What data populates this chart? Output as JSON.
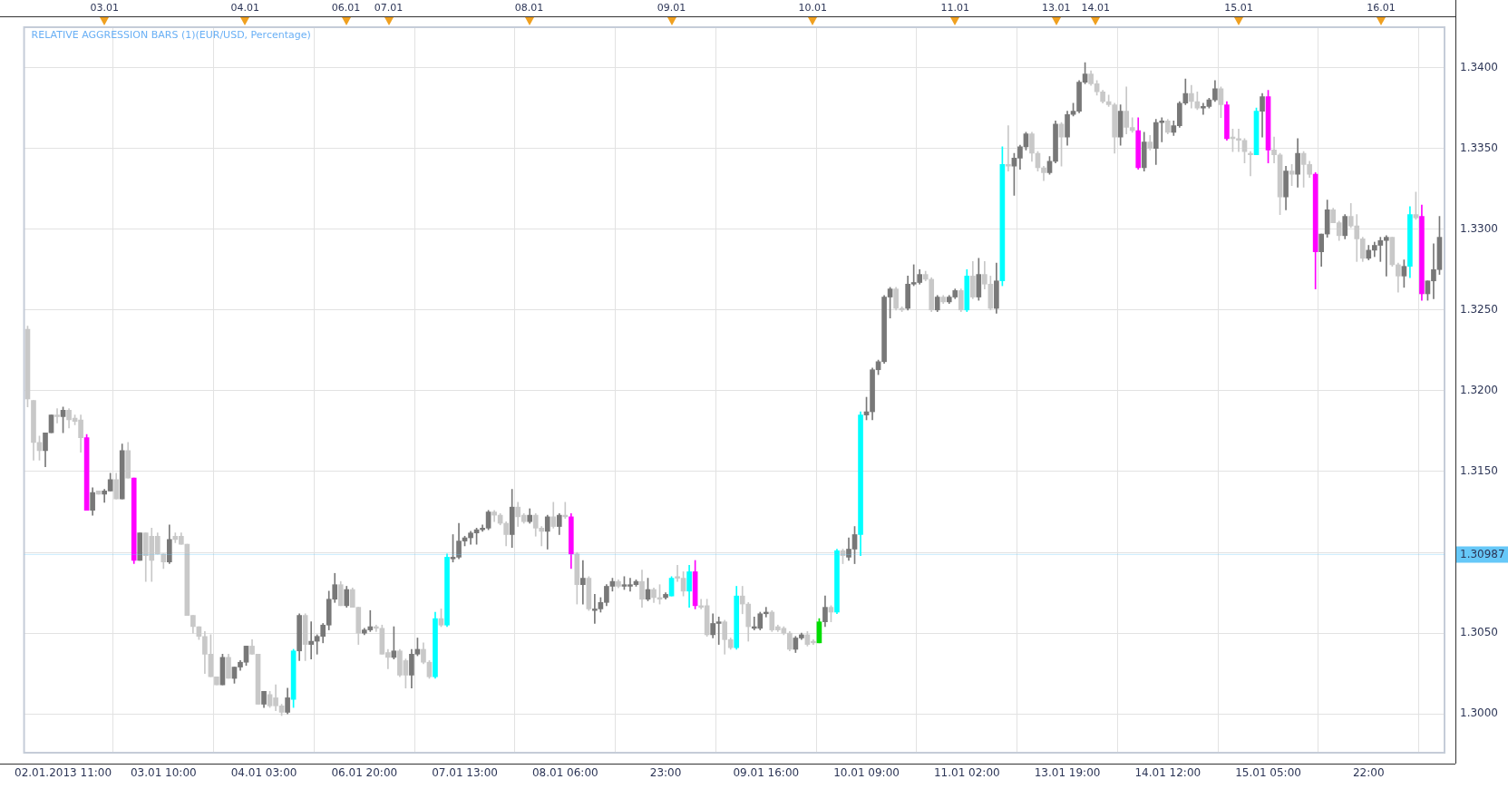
{
  "chart_data": {
    "type": "candlestick",
    "title": "RELATIVE AGGRESSION BARS (1)(EUR/USD, Percentage)",
    "categories": [
      null,
      null,
      null,
      null,
      null,
      null,
      "02.01.2013 11:00",
      null,
      null,
      null,
      null,
      null,
      null,
      null,
      null,
      null,
      null,
      null,
      null,
      null,
      null,
      null,
      null,
      "03.01 10:00",
      null,
      null,
      null,
      null,
      null,
      null,
      null,
      null,
      null,
      null,
      null,
      null,
      null,
      null,
      null,
      null,
      "04.01 03:00",
      null,
      null,
      null,
      null,
      null,
      null,
      null,
      null,
      null,
      null,
      null,
      null,
      null,
      null,
      null,
      null,
      "06.01 20:00",
      null,
      null,
      null,
      null,
      null,
      null,
      null,
      null,
      null,
      null,
      null,
      null,
      null,
      null,
      null,
      null,
      "07.01 13:00",
      null,
      null,
      null,
      null,
      null,
      null,
      null,
      null,
      null,
      null,
      null,
      null,
      null,
      null,
      null,
      null,
      "08.01 06:00",
      null,
      null,
      null,
      null,
      null,
      null,
      null,
      null,
      null,
      null,
      null,
      null,
      null,
      null,
      null,
      null,
      "23:00",
      null,
      null,
      null,
      null,
      null,
      null,
      null,
      null,
      null,
      null,
      null,
      null,
      null,
      null,
      null,
      null,
      "09.01 16:00",
      null,
      null,
      null,
      null,
      null,
      null,
      null,
      null,
      null,
      null,
      null,
      null,
      null,
      null,
      null,
      null,
      "10.01 09:00",
      null,
      null,
      null,
      null,
      null,
      null,
      null,
      null,
      null,
      null,
      null,
      null,
      null,
      null,
      null,
      null,
      "11.01 02:00",
      null,
      null,
      null,
      null,
      null,
      null,
      null,
      null,
      null,
      null,
      null,
      null,
      null,
      null,
      null,
      null,
      "13.01 19:00",
      null,
      null,
      null,
      null,
      null,
      null,
      null,
      null,
      null,
      null,
      null,
      null,
      null,
      null,
      null,
      null,
      "14.01 12:00",
      null,
      null,
      null,
      null,
      null,
      null,
      null,
      null,
      null,
      null,
      null,
      null,
      null,
      null,
      null,
      null,
      "15.01 05:00",
      null,
      null,
      null,
      null,
      null,
      null,
      null,
      null,
      null,
      null,
      null,
      null,
      null,
      null,
      null,
      null,
      "22:00",
      null,
      null,
      null,
      null,
      null,
      null,
      null,
      null,
      null,
      null,
      null,
      null
    ],
    "ohlc": [
      [
        1.3238,
        1.324,
        1.319,
        1.3195
      ],
      [
        1.3194,
        1.3194,
        1.3157,
        1.3168
      ],
      [
        1.3168,
        1.3172,
        1.3157,
        1.3163
      ],
      [
        1.3163,
        1.3174,
        1.3153,
        1.3174
      ],
      [
        1.3174,
        1.3185,
        1.3174,
        1.3185
      ],
      [
        1.3185,
        1.3189,
        1.318,
        1.3184
      ],
      [
        1.3184,
        1.319,
        1.3174,
        1.3188
      ],
      [
        1.3188,
        1.3189,
        1.3177,
        1.3182
      ],
      [
        1.3183,
        1.3185,
        1.3179,
        1.3181
      ],
      [
        1.3182,
        1.3185,
        1.3162,
        1.3171
      ],
      [
        1.3171,
        1.3173,
        1.3126,
        1.3126
      ],
      [
        1.3126,
        1.314,
        1.3123,
        1.3137
      ],
      [
        1.3138,
        1.3138,
        1.3136,
        1.3136
      ],
      [
        1.3136,
        1.3139,
        1.3131,
        1.3138
      ],
      [
        1.3138,
        1.3149,
        1.3138,
        1.3145
      ],
      [
        1.3145,
        1.3149,
        1.3133,
        1.3133
      ],
      [
        1.3133,
        1.3167,
        1.3133,
        1.3163
      ],
      [
        1.3163,
        1.3168,
        1.3146,
        1.3146
      ],
      [
        1.3146,
        1.3146,
        1.3093,
        1.3095
      ],
      [
        1.3095,
        1.3112,
        1.3095,
        1.3112
      ],
      [
        1.3112,
        1.3112,
        1.3082,
        1.3098
      ],
      [
        1.311,
        1.3115,
        1.3082,
        1.3095
      ],
      [
        1.311,
        1.3112,
        1.3099,
        1.3099
      ],
      [
        1.3099,
        1.3099,
        1.309,
        1.3094
      ],
      [
        1.3094,
        1.3117,
        1.3093,
        1.3108
      ],
      [
        1.311,
        1.3112,
        1.3106,
        1.3108
      ],
      [
        1.311,
        1.3112,
        1.3105,
        1.3105
      ],
      [
        1.3105,
        1.3105,
        1.3061,
        1.3061
      ],
      [
        1.3061,
        1.3061,
        1.305,
        1.3054
      ],
      [
        1.3054,
        1.3054,
        1.3046,
        1.3048
      ],
      [
        1.3048,
        1.3051,
        1.3025,
        1.3037
      ],
      [
        1.3037,
        1.3049,
        1.3023,
        1.3023
      ],
      [
        1.3023,
        1.3023,
        1.3018,
        1.3018
      ],
      [
        1.3018,
        1.3037,
        1.3018,
        1.3035
      ],
      [
        1.3035,
        1.3037,
        1.3022,
        1.3022
      ],
      [
        1.3022,
        1.3029,
        1.3019,
        1.3029
      ],
      [
        1.3029,
        1.3033,
        1.3027,
        1.3032
      ],
      [
        1.3032,
        1.3042,
        1.303,
        1.3042
      ],
      [
        1.3042,
        1.3046,
        1.3037,
        1.3037
      ],
      [
        1.3037,
        1.3037,
        1.3006,
        1.3006
      ],
      [
        1.3006,
        1.3014,
        1.3004,
        1.3014
      ],
      [
        1.3012,
        1.3014,
        1.3004,
        1.3005
      ],
      [
        1.301,
        1.3018,
        1.3002,
        1.3005
      ],
      [
        1.3005,
        1.3006,
        1.2999,
        1.3001
      ],
      [
        1.3001,
        1.3016,
        1.3,
        1.301
      ],
      [
        1.3009,
        1.304,
        1.3004,
        1.3039
      ],
      [
        1.3039,
        1.3062,
        1.3033,
        1.3061
      ],
      [
        1.3061,
        1.3062,
        1.3033,
        1.3043
      ],
      [
        1.3043,
        1.3057,
        1.3034,
        1.3045
      ],
      [
        1.3045,
        1.3049,
        1.3037,
        1.3048
      ],
      [
        1.3048,
        1.3056,
        1.3044,
        1.3055
      ],
      [
        1.3055,
        1.3076,
        1.3052,
        1.3071
      ],
      [
        1.3071,
        1.3087,
        1.3069,
        1.308
      ],
      [
        1.308,
        1.3082,
        1.3067,
        1.3067
      ],
      [
        1.3067,
        1.3079,
        1.3066,
        1.3077
      ],
      [
        1.3077,
        1.3078,
        1.3066,
        1.3066
      ],
      [
        1.3066,
        1.3066,
        1.3043,
        1.305
      ],
      [
        1.305,
        1.3053,
        1.3049,
        1.3052
      ],
      [
        1.3052,
        1.3064,
        1.3051,
        1.3054
      ],
      [
        1.3054,
        1.3055,
        1.3051,
        1.3053
      ],
      [
        1.3053,
        1.3055,
        1.3037,
        1.3037
      ],
      [
        1.3038,
        1.304,
        1.3028,
        1.3035
      ],
      [
        1.3035,
        1.3054,
        1.3034,
        1.3039
      ],
      [
        1.3039,
        1.304,
        1.3023,
        1.3024
      ],
      [
        1.3033,
        1.3034,
        1.3016,
        1.3024
      ],
      [
        1.3024,
        1.304,
        1.3016,
        1.3037
      ],
      [
        1.3037,
        1.3047,
        1.3036,
        1.304
      ],
      [
        1.304,
        1.3044,
        1.3031,
        1.3032
      ],
      [
        1.3032,
        1.3033,
        1.3022,
        1.3023
      ],
      [
        1.3023,
        1.3063,
        1.3022,
        1.3059
      ],
      [
        1.3059,
        1.3065,
        1.3054,
        1.3055
      ],
      [
        1.3055,
        1.3099,
        1.3054,
        1.3097
      ],
      [
        1.3096,
        1.3111,
        1.3094,
        1.3097
      ],
      [
        1.3097,
        1.3118,
        1.3096,
        1.3107
      ],
      [
        1.3107,
        1.311,
        1.3104,
        1.3109
      ],
      [
        1.3109,
        1.3113,
        1.3105,
        1.3112
      ],
      [
        1.3112,
        1.3115,
        1.3105,
        1.3114
      ],
      [
        1.3114,
        1.3117,
        1.3113,
        1.3115
      ],
      [
        1.3115,
        1.3126,
        1.3114,
        1.3125
      ],
      [
        1.3125,
        1.3126,
        1.3119,
        1.3123
      ],
      [
        1.3123,
        1.3124,
        1.3117,
        1.3118
      ],
      [
        1.3118,
        1.3119,
        1.3104,
        1.3111
      ],
      [
        1.3111,
        1.3139,
        1.3103,
        1.3128
      ],
      [
        1.3128,
        1.3131,
        1.3116,
        1.3122
      ],
      [
        1.3123,
        1.3124,
        1.3118,
        1.3119
      ],
      [
        1.3119,
        1.3127,
        1.3118,
        1.3123
      ],
      [
        1.3123,
        1.3124,
        1.311,
        1.3115
      ],
      [
        1.3115,
        1.3116,
        1.3104,
        1.3113
      ],
      [
        1.3113,
        1.3123,
        1.3102,
        1.3122
      ],
      [
        1.3122,
        1.3131,
        1.3115,
        1.3116
      ],
      [
        1.3116,
        1.3124,
        1.3111,
        1.3123
      ],
      [
        1.3123,
        1.3131,
        1.3121,
        1.3122
      ],
      [
        1.3122,
        1.3124,
        1.309,
        1.3099
      ],
      [
        1.3099,
        1.31,
        1.3068,
        1.308
      ],
      [
        1.308,
        1.3095,
        1.3068,
        1.3084
      ],
      [
        1.3084,
        1.3085,
        1.3064,
        1.3065
      ],
      [
        1.3064,
        1.3074,
        1.3056,
        1.3065
      ],
      [
        1.3065,
        1.3072,
        1.3063,
        1.3069
      ],
      [
        1.3069,
        1.308,
        1.3067,
        1.3079
      ],
      [
        1.3079,
        1.3084,
        1.3076,
        1.3082
      ],
      [
        1.3082,
        1.3083,
        1.3078,
        1.3079
      ],
      [
        1.3079,
        1.3085,
        1.3077,
        1.308
      ],
      [
        1.3079,
        1.3084,
        1.3076,
        1.308
      ],
      [
        1.308,
        1.3083,
        1.3079,
        1.3082
      ],
      [
        1.3082,
        1.3089,
        1.3066,
        1.3071
      ],
      [
        1.3071,
        1.3084,
        1.307,
        1.3077
      ],
      [
        1.3077,
        1.3078,
        1.3069,
        1.3072
      ],
      [
        1.3072,
        1.308,
        1.3068,
        1.3071
      ],
      [
        1.3072,
        1.3075,
        1.3071,
        1.3074
      ],
      [
        1.3073,
        1.3085,
        1.3073,
        1.3084
      ],
      [
        1.3085,
        1.3092,
        1.3082,
        1.3084
      ],
      [
        1.3084,
        1.3088,
        1.3073,
        1.3076
      ],
      [
        1.3076,
        1.3092,
        1.3066,
        1.3088
      ],
      [
        1.3088,
        1.3095,
        1.3065,
        1.3067
      ],
      [
        1.3067,
        1.3071,
        1.3065,
        1.3066
      ],
      [
        1.3067,
        1.3071,
        1.3048,
        1.3049
      ],
      [
        1.3049,
        1.3062,
        1.3047,
        1.3056
      ],
      [
        1.3056,
        1.306,
        1.3043,
        1.3057
      ],
      [
        1.3057,
        1.3058,
        1.3037,
        1.3046
      ],
      [
        1.3046,
        1.3047,
        1.304,
        1.3041
      ],
      [
        1.3041,
        1.3079,
        1.304,
        1.3073
      ],
      [
        1.3073,
        1.3079,
        1.3062,
        1.3068
      ],
      [
        1.3068,
        1.3069,
        1.3045,
        1.3054
      ],
      [
        1.3053,
        1.306,
        1.3052,
        1.3054
      ],
      [
        1.3053,
        1.3063,
        1.3052,
        1.3062
      ],
      [
        1.3062,
        1.3066,
        1.306,
        1.3063
      ],
      [
        1.3063,
        1.3064,
        1.3051,
        1.3052
      ],
      [
        1.3054,
        1.3055,
        1.3051,
        1.3052
      ],
      [
        1.3053,
        1.3054,
        1.3049,
        1.305
      ],
      [
        1.305,
        1.3051,
        1.3039,
        1.304
      ],
      [
        1.304,
        1.3048,
        1.3038,
        1.3047
      ],
      [
        1.3047,
        1.305,
        1.3046,
        1.3049
      ],
      [
        1.3049,
        1.3051,
        1.3042,
        1.3043
      ],
      [
        1.3045,
        1.3046,
        1.3043,
        1.3044
      ],
      [
        1.3044,
        1.3059,
        1.3044,
        1.3057
      ],
      [
        1.3057,
        1.3073,
        1.3054,
        1.3066
      ],
      [
        1.3066,
        1.3067,
        1.3057,
        1.3063
      ],
      [
        1.3063,
        1.3102,
        1.3062,
        1.3101
      ],
      [
        1.3101,
        1.3102,
        1.3093,
        1.3098
      ],
      [
        1.3097,
        1.3109,
        1.3095,
        1.3102
      ],
      [
        1.3102,
        1.3116,
        1.3093,
        1.3111
      ],
      [
        1.3111,
        1.3187,
        1.3098,
        1.3185
      ],
      [
        1.3185,
        1.3196,
        1.3182,
        1.3187
      ],
      [
        1.3187,
        1.3214,
        1.3182,
        1.3213
      ],
      [
        1.3213,
        1.3219,
        1.321,
        1.3218
      ],
      [
        1.3218,
        1.3259,
        1.3217,
        1.3258
      ],
      [
        1.3258,
        1.3264,
        1.3245,
        1.3263
      ],
      [
        1.3263,
        1.3264,
        1.325,
        1.3251
      ],
      [
        1.3251,
        1.3252,
        1.3249,
        1.325
      ],
      [
        1.3251,
        1.3271,
        1.325,
        1.3266
      ],
      [
        1.3266,
        1.3278,
        1.3265,
        1.3267
      ],
      [
        1.3267,
        1.3275,
        1.3266,
        1.3272
      ],
      [
        1.3272,
        1.3274,
        1.3268,
        1.3269
      ],
      [
        1.3269,
        1.327,
        1.3249,
        1.325
      ],
      [
        1.325,
        1.3259,
        1.3249,
        1.3258
      ],
      [
        1.3258,
        1.3259,
        1.3254,
        1.3255
      ],
      [
        1.3255,
        1.3259,
        1.3254,
        1.3258
      ],
      [
        1.3258,
        1.3263,
        1.3257,
        1.3262
      ],
      [
        1.3262,
        1.3263,
        1.3249,
        1.325
      ],
      [
        1.325,
        1.3275,
        1.3249,
        1.3271
      ],
      [
        1.3271,
        1.328,
        1.3257,
        1.3258
      ],
      [
        1.3258,
        1.3282,
        1.3256,
        1.3272
      ],
      [
        1.3272,
        1.328,
        1.3263,
        1.3266
      ],
      [
        1.3266,
        1.3271,
        1.325,
        1.3251
      ],
      [
        1.3251,
        1.3279,
        1.3248,
        1.3268
      ],
      [
        1.3268,
        1.3351,
        1.3265,
        1.334
      ],
      [
        1.334,
        1.3364,
        1.3336,
        1.3339
      ],
      [
        1.3339,
        1.3347,
        1.3321,
        1.3344
      ],
      [
        1.3344,
        1.3352,
        1.3337,
        1.3351
      ],
      [
        1.3351,
        1.336,
        1.3349,
        1.3359
      ],
      [
        1.3359,
        1.336,
        1.3342,
        1.3347
      ],
      [
        1.3347,
        1.3348,
        1.3336,
        1.3338
      ],
      [
        1.3338,
        1.3339,
        1.333,
        1.3335
      ],
      [
        1.3335,
        1.3345,
        1.3334,
        1.3342
      ],
      [
        1.3342,
        1.3367,
        1.3341,
        1.3365
      ],
      [
        1.3365,
        1.3366,
        1.3339,
        1.3357
      ],
      [
        1.3357,
        1.3373,
        1.3352,
        1.3371
      ],
      [
        1.3371,
        1.3378,
        1.337,
        1.3373
      ],
      [
        1.3373,
        1.3392,
        1.3372,
        1.3391
      ],
      [
        1.3391,
        1.3403,
        1.339,
        1.3396
      ],
      [
        1.3396,
        1.3398,
        1.3389,
        1.339
      ],
      [
        1.339,
        1.3392,
        1.3383,
        1.3385
      ],
      [
        1.3385,
        1.3386,
        1.3378,
        1.3379
      ],
      [
        1.3379,
        1.3383,
        1.3376,
        1.3377
      ],
      [
        1.3377,
        1.3378,
        1.3347,
        1.3357
      ],
      [
        1.3357,
        1.3377,
        1.3352,
        1.3373
      ],
      [
        1.3373,
        1.3388,
        1.3359,
        1.3363
      ],
      [
        1.3363,
        1.3369,
        1.336,
        1.3361
      ],
      [
        1.3361,
        1.3369,
        1.3337,
        1.3338
      ],
      [
        1.3338,
        1.336,
        1.3336,
        1.3354
      ],
      [
        1.3354,
        1.3358,
        1.3349,
        1.335
      ],
      [
        1.335,
        1.3368,
        1.334,
        1.3366
      ],
      [
        1.3366,
        1.3369,
        1.3354,
        1.3367
      ],
      [
        1.3367,
        1.3368,
        1.3359,
        1.336
      ],
      [
        1.336,
        1.3367,
        1.3358,
        1.3364
      ],
      [
        1.3364,
        1.3379,
        1.3363,
        1.3378
      ],
      [
        1.3378,
        1.3393,
        1.3377,
        1.3384
      ],
      [
        1.3384,
        1.3389,
        1.3375,
        1.3379
      ],
      [
        1.3379,
        1.3385,
        1.3374,
        1.3375
      ],
      [
        1.3375,
        1.3378,
        1.3371,
        1.3376
      ],
      [
        1.3376,
        1.3381,
        1.3375,
        1.338
      ],
      [
        1.338,
        1.3392,
        1.3379,
        1.3387
      ],
      [
        1.3387,
        1.3388,
        1.3369,
        1.3377
      ],
      [
        1.3377,
        1.3379,
        1.3355,
        1.3356
      ],
      [
        1.3357,
        1.3362,
        1.3348,
        1.3356
      ],
      [
        1.3356,
        1.3362,
        1.3348,
        1.3355
      ],
      [
        1.3355,
        1.3356,
        1.3341,
        1.3348
      ],
      [
        1.3347,
        1.3348,
        1.3333,
        1.3346
      ],
      [
        1.3346,
        1.3375,
        1.3346,
        1.3373
      ],
      [
        1.3373,
        1.3384,
        1.3357,
        1.3382
      ],
      [
        1.3382,
        1.3386,
        1.3341,
        1.3349
      ],
      [
        1.3349,
        1.3357,
        1.3341,
        1.3346
      ],
      [
        1.3346,
        1.3347,
        1.3309,
        1.332
      ],
      [
        1.332,
        1.3339,
        1.3312,
        1.3336
      ],
      [
        1.3336,
        1.334,
        1.3327,
        1.3334
      ],
      [
        1.3334,
        1.3356,
        1.3326,
        1.3347
      ],
      [
        1.3347,
        1.3348,
        1.3326,
        1.334
      ],
      [
        1.334,
        1.3342,
        1.3332,
        1.3334
      ],
      [
        1.3334,
        1.3335,
        1.3263,
        1.3286
      ],
      [
        1.3286,
        1.3297,
        1.3277,
        1.3297
      ],
      [
        1.3297,
        1.3318,
        1.3295,
        1.3312
      ],
      [
        1.3312,
        1.3313,
        1.3304,
        1.3304
      ],
      [
        1.3304,
        1.3305,
        1.3293,
        1.3296
      ],
      [
        1.3296,
        1.3309,
        1.3294,
        1.3308
      ],
      [
        1.3308,
        1.3316,
        1.3301,
        1.3302
      ],
      [
        1.3302,
        1.3309,
        1.328,
        1.3294
      ],
      [
        1.3294,
        1.3295,
        1.328,
        1.3282
      ],
      [
        1.3282,
        1.329,
        1.3281,
        1.3287
      ],
      [
        1.3287,
        1.3292,
        1.3283,
        1.329
      ],
      [
        1.329,
        1.3295,
        1.328,
        1.3293
      ],
      [
        1.3293,
        1.3296,
        1.3271,
        1.3295
      ],
      [
        1.3295,
        1.3295,
        1.3277,
        1.3278
      ],
      [
        1.3278,
        1.3279,
        1.3261,
        1.3271
      ],
      [
        1.3271,
        1.3281,
        1.3264,
        1.3277
      ],
      [
        1.3277,
        1.3314,
        1.327,
        1.3309
      ],
      [
        1.3309,
        1.3323,
        1.3306,
        1.3307
      ],
      [
        1.3308,
        1.3315,
        1.3256,
        1.326
      ],
      [
        1.326,
        1.3268,
        1.3256,
        1.3268
      ],
      [
        1.3268,
        1.3291,
        1.3257,
        1.3275
      ],
      [
        1.3275,
        1.3308,
        1.3272,
        1.3295
      ]
    ],
    "colors": [
      "#c8c8c8",
      "#c8c8c8",
      "#c8c8c8",
      "#787878",
      "#787878",
      "#c8c8c8",
      "#787878",
      "#c8c8c8",
      "#c8c8c8",
      "#c8c8c8",
      "#ff00ff",
      "#787878",
      "#c8c8c8",
      "#787878",
      "#787878",
      "#c8c8c8",
      "#787878",
      "#c8c8c8",
      "#ff00ff",
      "#787878",
      "#c8c8c8",
      "#c8c8c8",
      "#c8c8c8",
      "#c8c8c8",
      "#787878",
      "#c8c8c8",
      "#c8c8c8",
      "#c8c8c8",
      "#c8c8c8",
      "#c8c8c8",
      "#c8c8c8",
      "#c8c8c8",
      "#c8c8c8",
      "#787878",
      "#c8c8c8",
      "#787878",
      "#787878",
      "#787878",
      "#c8c8c8",
      "#c8c8c8",
      "#787878",
      "#c8c8c8",
      "#c8c8c8",
      "#c8c8c8",
      "#787878",
      "#00ffff",
      "#787878",
      "#c8c8c8",
      "#787878",
      "#787878",
      "#787878",
      "#787878",
      "#787878",
      "#c8c8c8",
      "#787878",
      "#c8c8c8",
      "#c8c8c8",
      "#787878",
      "#787878",
      "#c8c8c8",
      "#c8c8c8",
      "#c8c8c8",
      "#787878",
      "#c8c8c8",
      "#c8c8c8",
      "#787878",
      "#787878",
      "#c8c8c8",
      "#c8c8c8",
      "#00ffff",
      "#c8c8c8",
      "#00ffff",
      "#787878",
      "#787878",
      "#787878",
      "#787878",
      "#787878",
      "#787878",
      "#787878",
      "#c8c8c8",
      "#c8c8c8",
      "#c8c8c8",
      "#787878",
      "#c8c8c8",
      "#c8c8c8",
      "#787878",
      "#c8c8c8",
      "#c8c8c8",
      "#787878",
      "#c8c8c8",
      "#787878",
      "#c8c8c8",
      "#ff00ff",
      "#c8c8c8",
      "#787878",
      "#c8c8c8",
      "#787878",
      "#787878",
      "#787878",
      "#787878",
      "#c8c8c8",
      "#787878",
      "#787878",
      "#787878",
      "#c8c8c8",
      "#787878",
      "#c8c8c8",
      "#c8c8c8",
      "#787878",
      "#00ffff",
      "#c8c8c8",
      "#c8c8c8",
      "#00ffff",
      "#ff00ff",
      "#c8c8c8",
      "#c8c8c8",
      "#787878",
      "#787878",
      "#c8c8c8",
      "#c8c8c8",
      "#00ffff",
      "#c8c8c8",
      "#c8c8c8",
      "#787878",
      "#787878",
      "#787878",
      "#c8c8c8",
      "#c8c8c8",
      "#c8c8c8",
      "#c8c8c8",
      "#787878",
      "#787878",
      "#c8c8c8",
      "#c8c8c8",
      "#00dd00",
      "#787878",
      "#c8c8c8",
      "#00ffff",
      "#c8c8c8",
      "#787878",
      "#787878",
      "#00ffff",
      "#787878",
      "#787878",
      "#787878",
      "#787878",
      "#787878",
      "#c8c8c8",
      "#c8c8c8",
      "#787878",
      "#787878",
      "#787878",
      "#c8c8c8",
      "#c8c8c8",
      "#787878",
      "#c8c8c8",
      "#787878",
      "#787878",
      "#c8c8c8",
      "#00ffff",
      "#c8c8c8",
      "#787878",
      "#c8c8c8",
      "#c8c8c8",
      "#787878",
      "#00ffff",
      "#c8c8c8",
      "#787878",
      "#787878",
      "#787878",
      "#c8c8c8",
      "#c8c8c8",
      "#c8c8c8",
      "#787878",
      "#787878",
      "#c8c8c8",
      "#787878",
      "#787878",
      "#787878",
      "#787878",
      "#c8c8c8",
      "#c8c8c8",
      "#c8c8c8",
      "#c8c8c8",
      "#c8c8c8",
      "#787878",
      "#c8c8c8",
      "#c8c8c8",
      "#ff00ff",
      "#787878",
      "#c8c8c8",
      "#787878",
      "#787878",
      "#c8c8c8",
      "#787878",
      "#787878",
      "#787878",
      "#c8c8c8",
      "#c8c8c8",
      "#787878",
      "#787878",
      "#787878",
      "#c8c8c8",
      "#ff00ff",
      "#c8c8c8",
      "#c8c8c8",
      "#c8c8c8",
      "#c8c8c8",
      "#00ffff",
      "#787878",
      "#ff00ff",
      "#c8c8c8",
      "#c8c8c8",
      "#787878",
      "#c8c8c8",
      "#787878",
      "#c8c8c8",
      "#c8c8c8",
      "#ff00ff",
      "#787878",
      "#787878",
      "#c8c8c8",
      "#c8c8c8",
      "#787878",
      "#c8c8c8",
      "#c8c8c8",
      "#c8c8c8",
      "#787878",
      "#787878",
      "#787878",
      "#787878",
      "#c8c8c8",
      "#c8c8c8",
      "#787878",
      "#00ffff",
      "#c8c8c8",
      "#ff00ff",
      "#787878",
      "#787878",
      "#787878"
    ],
    "ylim": [
      1.2976,
      1.3425
    ],
    "yticks": [
      {
        "value": 1.3,
        "label": "1.3000"
      },
      {
        "value": 1.305,
        "label": "1.3050"
      },
      {
        "value": 1.31,
        "label": null
      },
      {
        "value": 1.315,
        "label": "1.3150"
      },
      {
        "value": 1.32,
        "label": "1.3200"
      },
      {
        "value": 1.325,
        "label": "1.3250"
      },
      {
        "value": 1.33,
        "label": "1.3300"
      },
      {
        "value": 1.335,
        "label": "1.3350"
      },
      {
        "value": 1.34,
        "label": "1.3400"
      }
    ],
    "grid": true,
    "ref_lines": [
      {
        "axis": "y",
        "value": 1.30987,
        "label": "1.30987",
        "color": "#66c8f8"
      }
    ],
    "annotations": [
      "03.01",
      "04.01",
      "06.01",
      "07.01",
      "08.01",
      "09.01",
      "10.01",
      "11.01",
      "13.01",
      "14.01",
      "15.01",
      "16.01"
    ]
  }
}
